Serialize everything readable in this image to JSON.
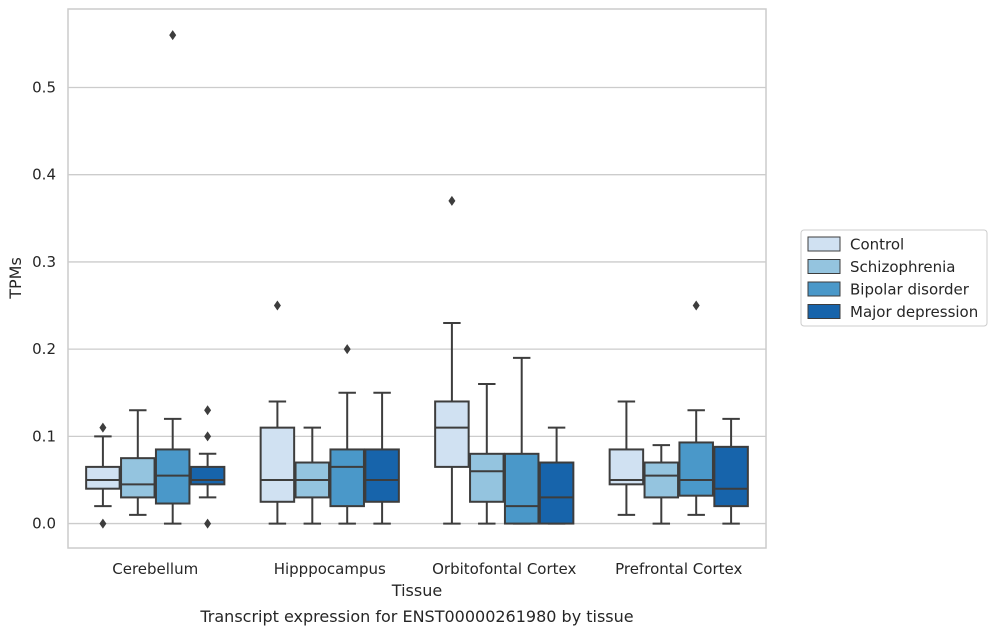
{
  "chart_data": {
    "type": "box",
    "xlabel": "Tissue",
    "ylabel": "TPMs",
    "caption": "Transcript expression for ENST00000261980 by tissue",
    "ylim": [
      -0.028,
      0.59
    ],
    "yticks": [
      "0.0",
      "0.1",
      "0.2",
      "0.3",
      "0.4",
      "0.5"
    ],
    "categories": [
      "Cerebellum",
      "Hipppocampus",
      "Orbitofontal Cortex",
      "Prefrontal Cortex"
    ],
    "grid": true,
    "legend_position": "right",
    "series": [
      {
        "name": "Control",
        "color": "#d0e1f2",
        "boxes": [
          {
            "q1": 0.04,
            "median": 0.05,
            "q3": 0.065,
            "whisker_low": 0.02,
            "whisker_high": 0.1,
            "outliers": [
              0.11,
              0.0
            ]
          },
          {
            "q1": 0.025,
            "median": 0.05,
            "q3": 0.11,
            "whisker_low": 0.0,
            "whisker_high": 0.14,
            "outliers": [
              0.25
            ]
          },
          {
            "q1": 0.065,
            "median": 0.11,
            "q3": 0.14,
            "whisker_low": 0.0,
            "whisker_high": 0.23,
            "outliers": [
              0.37
            ]
          },
          {
            "q1": 0.045,
            "median": 0.05,
            "q3": 0.085,
            "whisker_low": 0.01,
            "whisker_high": 0.14,
            "outliers": []
          }
        ]
      },
      {
        "name": "Schizophrenia",
        "color": "#94c4df",
        "boxes": [
          {
            "q1": 0.03,
            "median": 0.045,
            "q3": 0.075,
            "whisker_low": 0.01,
            "whisker_high": 0.13,
            "outliers": []
          },
          {
            "q1": 0.03,
            "median": 0.05,
            "q3": 0.07,
            "whisker_low": 0.0,
            "whisker_high": 0.11,
            "outliers": []
          },
          {
            "q1": 0.025,
            "median": 0.06,
            "q3": 0.08,
            "whisker_low": 0.0,
            "whisker_high": 0.16,
            "outliers": []
          },
          {
            "q1": 0.03,
            "median": 0.055,
            "q3": 0.07,
            "whisker_low": 0.0,
            "whisker_high": 0.09,
            "outliers": []
          }
        ]
      },
      {
        "name": "Bipolar disorder",
        "color": "#4a98c9",
        "boxes": [
          {
            "q1": 0.023,
            "median": 0.055,
            "q3": 0.085,
            "whisker_low": 0.0,
            "whisker_high": 0.12,
            "outliers": [
              0.56
            ]
          },
          {
            "q1": 0.02,
            "median": 0.065,
            "q3": 0.085,
            "whisker_low": 0.0,
            "whisker_high": 0.15,
            "outliers": [
              0.2
            ]
          },
          {
            "q1": 0.0,
            "median": 0.02,
            "q3": 0.08,
            "whisker_low": 0.0,
            "whisker_high": 0.19,
            "outliers": []
          },
          {
            "q1": 0.032,
            "median": 0.05,
            "q3": 0.093,
            "whisker_low": 0.01,
            "whisker_high": 0.13,
            "outliers": [
              0.25
            ]
          }
        ]
      },
      {
        "name": "Major depression",
        "color": "#1764ab",
        "boxes": [
          {
            "q1": 0.045,
            "median": 0.05,
            "q3": 0.065,
            "whisker_low": 0.03,
            "whisker_high": 0.08,
            "outliers": [
              0.13,
              0.1,
              0.0
            ]
          },
          {
            "q1": 0.025,
            "median": 0.05,
            "q3": 0.085,
            "whisker_low": 0.0,
            "whisker_high": 0.15,
            "outliers": []
          },
          {
            "q1": 0.0,
            "median": 0.03,
            "q3": 0.07,
            "whisker_low": 0.0,
            "whisker_high": 0.11,
            "outliers": []
          },
          {
            "q1": 0.02,
            "median": 0.04,
            "q3": 0.088,
            "whisker_low": 0.0,
            "whisker_high": 0.12,
            "outliers": []
          }
        ]
      }
    ]
  }
}
